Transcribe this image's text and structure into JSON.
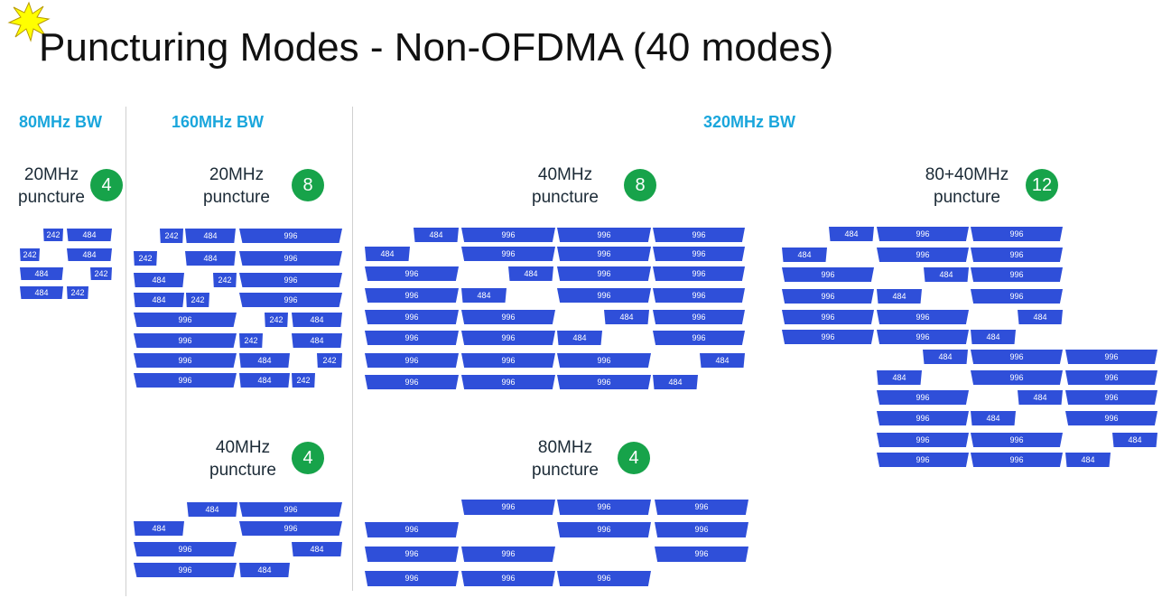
{
  "title": "Puncturing Modes - Non-OFDMA (40 modes)",
  "colors": {
    "ru_fill": "#2f4fd9",
    "badge": "#17a34a",
    "bw_header": "#1aa6dc"
  },
  "icons": {
    "corner": "yellow-star-burst-icon"
  },
  "bandwidths": {
    "bw80": "80MHz BW",
    "bw160": "160MHz BW",
    "bw320": "320MHz BW"
  },
  "groups": {
    "g80_20": {
      "line1": "20MHz",
      "line2": "puncture",
      "count": "4"
    },
    "g160_20": {
      "line1": "20MHz",
      "line2": "puncture",
      "count": "8"
    },
    "g160_40": {
      "line1": "40MHz",
      "line2": "puncture",
      "count": "4"
    },
    "g320_40": {
      "line1": "40MHz",
      "line2": "puncture",
      "count": "8"
    },
    "g320_80": {
      "line1": "80MHz",
      "line2": "puncture",
      "count": "4"
    },
    "g320_8040": {
      "line1": "80+40MHz",
      "line2": "puncture",
      "count": "12"
    }
  },
  "mode_blocks": {
    "g80_20": [
      [
        "242",
        "484"
      ],
      [
        "242",
        "484"
      ],
      [
        "484",
        "242"
      ],
      [
        "484",
        "242"
      ]
    ],
    "g160_20": [
      [
        "242",
        "484",
        "996"
      ],
      [
        "242",
        "484",
        "996"
      ],
      [
        "484",
        "242",
        "996"
      ],
      [
        "484",
        "242",
        "996"
      ],
      [
        "996",
        "242",
        "484"
      ],
      [
        "996",
        "242",
        "484"
      ],
      [
        "996",
        "484",
        "242"
      ],
      [
        "996",
        "484",
        "242"
      ]
    ],
    "g160_40": [
      [
        "484",
        "996"
      ],
      [
        "484",
        "996"
      ],
      [
        "996",
        "484"
      ],
      [
        "996",
        "484"
      ]
    ],
    "g320_40": [
      [
        "484",
        "996",
        "996",
        "996"
      ],
      [
        "484",
        "996",
        "996",
        "996"
      ],
      [
        "996",
        "484",
        "996",
        "996"
      ],
      [
        "996",
        "484",
        "996",
        "996"
      ],
      [
        "996",
        "996",
        "484",
        "996"
      ],
      [
        "996",
        "996",
        "484",
        "996"
      ],
      [
        "996",
        "996",
        "996",
        "484"
      ],
      [
        "996",
        "996",
        "996",
        "484"
      ]
    ],
    "g320_80": [
      [
        "996",
        "996",
        "996"
      ],
      [
        "996",
        "996",
        "996"
      ],
      [
        "996",
        "996",
        "996"
      ],
      [
        "996",
        "996",
        "996"
      ]
    ],
    "g320_8040": [
      [
        "484",
        "996",
        "996"
      ],
      [
        "484",
        "996",
        "996"
      ],
      [
        "996",
        "484",
        "996"
      ],
      [
        "996",
        "484",
        "996"
      ],
      [
        "996",
        "996",
        "484"
      ],
      [
        "996",
        "996",
        "484"
      ],
      [
        "484",
        "996",
        "996"
      ],
      [
        "484",
        "996",
        "996"
      ],
      [
        "996",
        "484",
        "996"
      ],
      [
        "996",
        "484",
        "996"
      ],
      [
        "996",
        "996",
        "484"
      ],
      [
        "996",
        "996",
        "484"
      ]
    ]
  }
}
